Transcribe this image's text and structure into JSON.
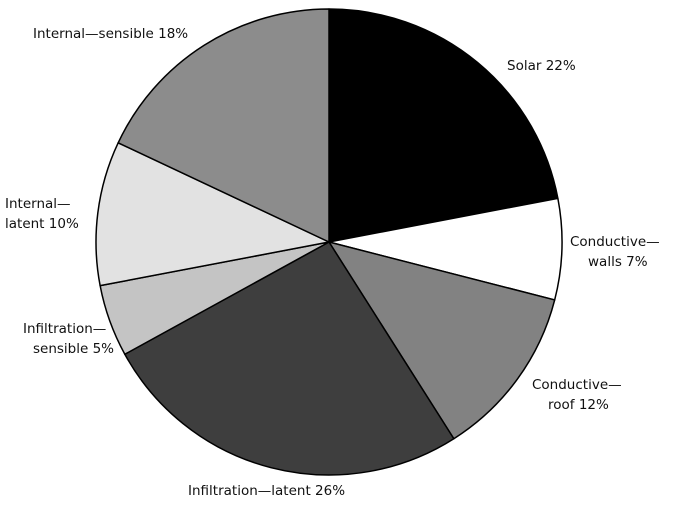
{
  "chart_data": {
    "type": "pie",
    "title": "",
    "start": "top",
    "direction": "clockwise",
    "slices": [
      {
        "label": [
          "Solar 22%"
        ],
        "value": 22,
        "color": "#000000"
      },
      {
        "label": [
          "Conductive—",
          "walls 7%"
        ],
        "value": 7,
        "color": "#ffffff"
      },
      {
        "label": [
          "Conductive—",
          "roof 12%"
        ],
        "value": 12,
        "color": "#828282"
      },
      {
        "label": [
          "Infiltration—latent 26%"
        ],
        "value": 26,
        "color": "#3e3e3e"
      },
      {
        "label": [
          "Infiltration—",
          "sensible 5%"
        ],
        "value": 5,
        "color": "#c4c4c4"
      },
      {
        "label": [
          "Internal—",
          "latent 10%"
        ],
        "value": 10,
        "color": "#e2e2e2"
      },
      {
        "label": [
          "Internal—sensible 18%"
        ],
        "value": 18,
        "color": "#8c8c8c"
      }
    ]
  }
}
